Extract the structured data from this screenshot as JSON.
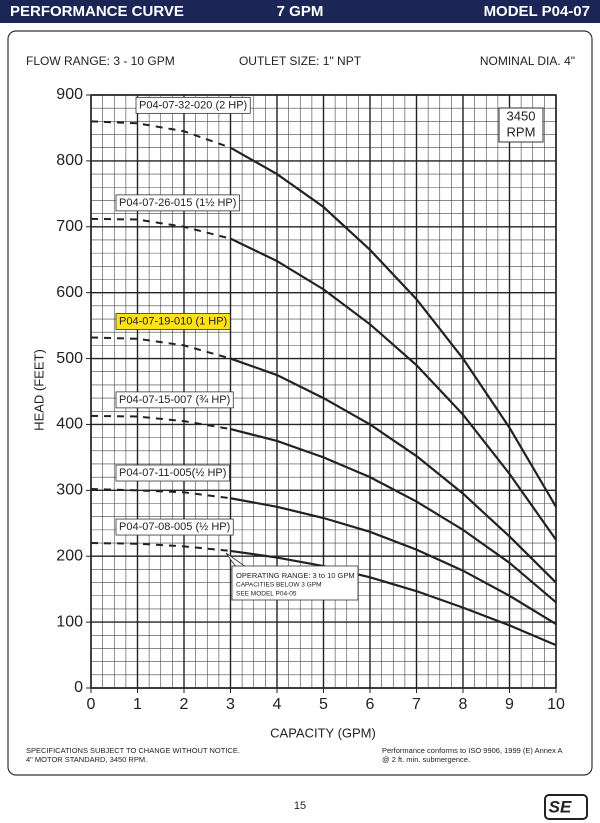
{
  "header": {
    "left": "PERFORMANCE CURVE",
    "center": "7 GPM",
    "right": "MODEL  P04-07"
  },
  "specs": [
    "FLOW RANGE: 3 - 10 GPM",
    "OUTLET SIZE: 1\" NPT",
    "NOMINAL DIA. 4\""
  ],
  "chart_data": {
    "type": "line",
    "x": [
      0,
      1,
      2,
      3,
      4,
      5,
      6,
      7,
      8,
      9,
      10
    ],
    "series": [
      {
        "name": "P04-07-32-020 (2 HP)",
        "color": "#222222",
        "values": [
          860,
          857,
          845,
          820,
          780,
          730,
          665,
          590,
          500,
          395,
          275
        ]
      },
      {
        "name": "P04-07-26-015 (1½ HP)",
        "color": "#222222",
        "values": [
          712,
          711,
          700,
          682,
          648,
          605,
          552,
          490,
          415,
          325,
          225
        ]
      },
      {
        "name": "P04-07-19-010 (1 HP)",
        "color": "#222222",
        "highlighted": true,
        "values": [
          532,
          530,
          520,
          500,
          475,
          440,
          400,
          352,
          295,
          230,
          160
        ]
      },
      {
        "name": "P04-07-15-007 (¾ HP)",
        "color": "#222222",
        "values": [
          413,
          412,
          405,
          393,
          375,
          350,
          320,
          283,
          240,
          190,
          130
        ]
      },
      {
        "name": "P04-07-11-005(½ HP)",
        "color": "#222222",
        "values": [
          302,
          300,
          297,
          288,
          275,
          258,
          237,
          210,
          178,
          140,
          97
        ]
      },
      {
        "name": "P04-07-08-005 (½ HP)",
        "color": "#222222",
        "values": [
          220,
          219,
          215,
          208,
          198,
          185,
          168,
          147,
          122,
          95,
          65
        ]
      }
    ],
    "dashed_below_x": 3,
    "xlabel": "CAPACITY (GPM)",
    "ylabel": "HEAD (FEET)",
    "xlim": [
      0,
      10
    ],
    "xticks": [
      0,
      1,
      2,
      3,
      4,
      5,
      6,
      7,
      8,
      9,
      10
    ],
    "ylim": [
      0,
      900
    ],
    "yticks": [
      0,
      100,
      200,
      300,
      400,
      500,
      600,
      700,
      800,
      900
    ],
    "grid": true,
    "minor_grid": {
      "x": 0.25,
      "y": 20
    },
    "rpm_label": [
      "3450",
      "RPM"
    ],
    "annotation": [
      "OPERATING RANGE: 3 to 10 GPM",
      "CAPACITIES BELOW 3 GPM",
      "SEE MODEL P04-05"
    ]
  },
  "footer": {
    "left": [
      "SPECIFICATIONS SUBJECT TO CHANGE WITHOUT NOTICE.",
      "4\" MOTOR STANDARD, 3450 RPM."
    ],
    "right": [
      "Performance conforms to ISO 9906, 1999 (E) Annex A",
      "@ 2 ft. min. submergence."
    ],
    "page": "15",
    "logo": "SE"
  }
}
